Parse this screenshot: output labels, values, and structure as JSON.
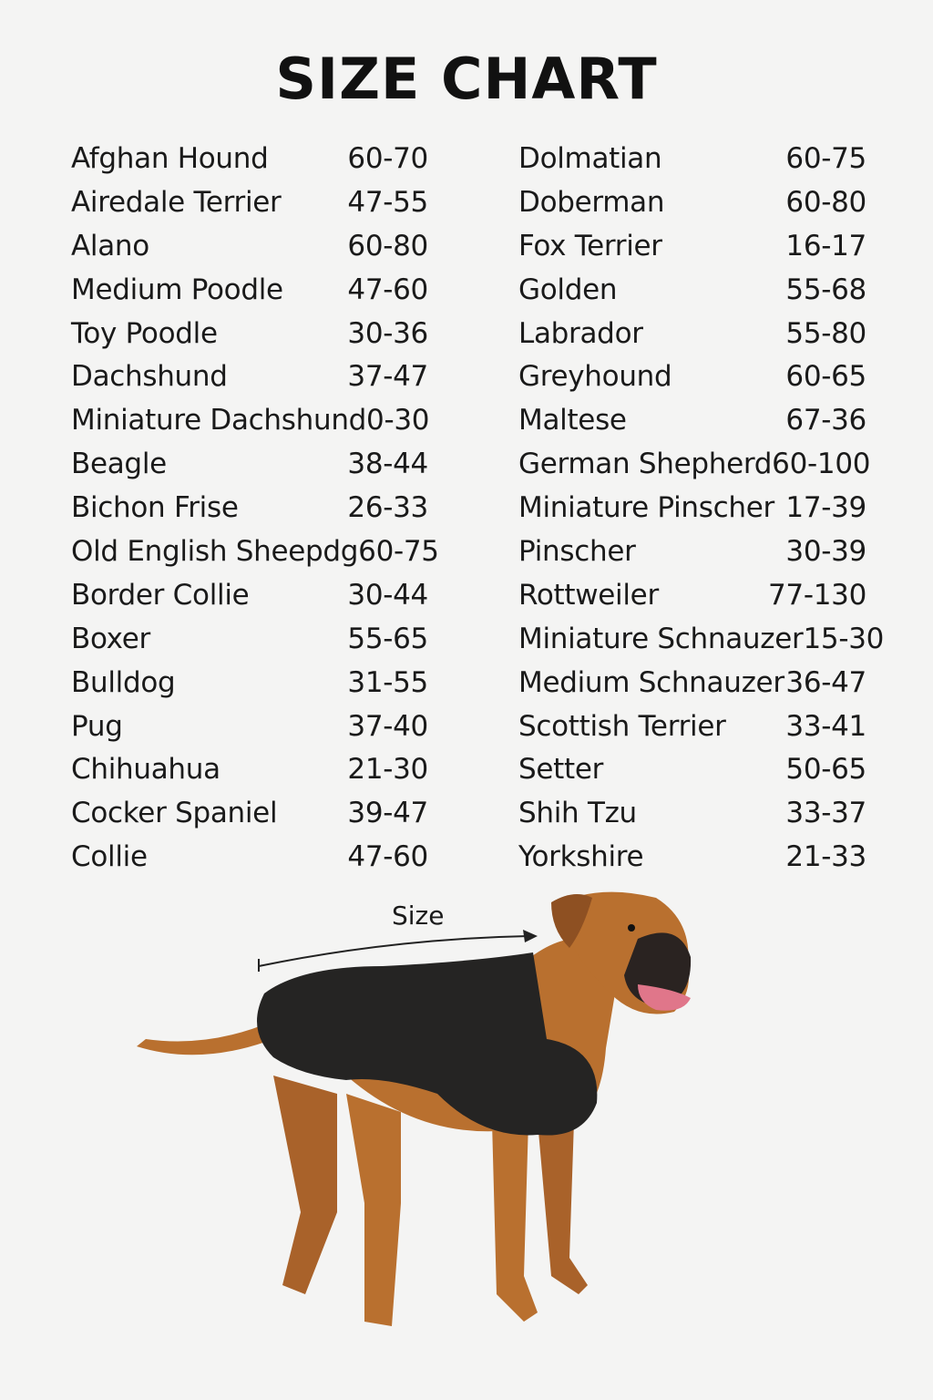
{
  "title": "SIZE CHART",
  "left_column": [
    {
      "breed": "Afghan Hound",
      "size": "60-70"
    },
    {
      "breed": "Airedale Terrier",
      "size": "47-55"
    },
    {
      "breed": "Alano",
      "size": "60-80"
    },
    {
      "breed": "Medium Poodle",
      "size": "47-60"
    },
    {
      "breed": "Toy Poodle",
      "size": "30-36"
    },
    {
      "breed": "Dachshund",
      "size": "37-47"
    },
    {
      "breed": "Miniature Dachshund",
      "size": "0-30"
    },
    {
      "breed": "Beagle",
      "size": "38-44"
    },
    {
      "breed": "Bichon Frise",
      "size": "26-33"
    },
    {
      "breed": "Old English Sheepdg",
      "size": "60-75"
    },
    {
      "breed": "Border Collie",
      "size": "30-44"
    },
    {
      "breed": "Boxer",
      "size": "55-65"
    },
    {
      "breed": "Bulldog",
      "size": "31-55"
    },
    {
      "breed": "Pug",
      "size": "37-40"
    },
    {
      "breed": "Chihuahua",
      "size": "21-30"
    },
    {
      "breed": "Cocker Spaniel",
      "size": "39-47"
    },
    {
      "breed": "Collie",
      "size": "47-60"
    }
  ],
  "right_column": [
    {
      "breed": "Dolmatian",
      "size": "60-75"
    },
    {
      "breed": "Doberman",
      "size": "60-80"
    },
    {
      "breed": "Fox Terrier",
      "size": "16-17"
    },
    {
      "breed": "Golden",
      "size": "55-68"
    },
    {
      "breed": "Labrador",
      "size": "55-80"
    },
    {
      "breed": "Greyhound",
      "size": "60-65"
    },
    {
      "breed": "Maltese",
      "size": "67-36"
    },
    {
      "breed": "German Shepherd",
      "size": "60-100"
    },
    {
      "breed": "Miniature Pinscher",
      "size": "17-39"
    },
    {
      "breed": "Pinscher",
      "size": "30-39"
    },
    {
      "breed": "Rottweiler",
      "size": "77-130"
    },
    {
      "breed": "Miniature Schnauzer",
      "size": "15-30"
    },
    {
      "breed": "Medium Schnauzer",
      "size": "36-47"
    },
    {
      "breed": "Scottish Terrier",
      "size": "33-41"
    },
    {
      "breed": "Setter",
      "size": "50-65"
    },
    {
      "breed": "Shih Tzu",
      "size": "33-37"
    },
    {
      "breed": "Yorkshire",
      "size": "21-33"
    }
  ],
  "illustration": {
    "measure_label": "Size",
    "subject": "boxer-dog-in-black-coat",
    "colors": {
      "fur": "#b9702f",
      "coat": "#252423"
    }
  }
}
